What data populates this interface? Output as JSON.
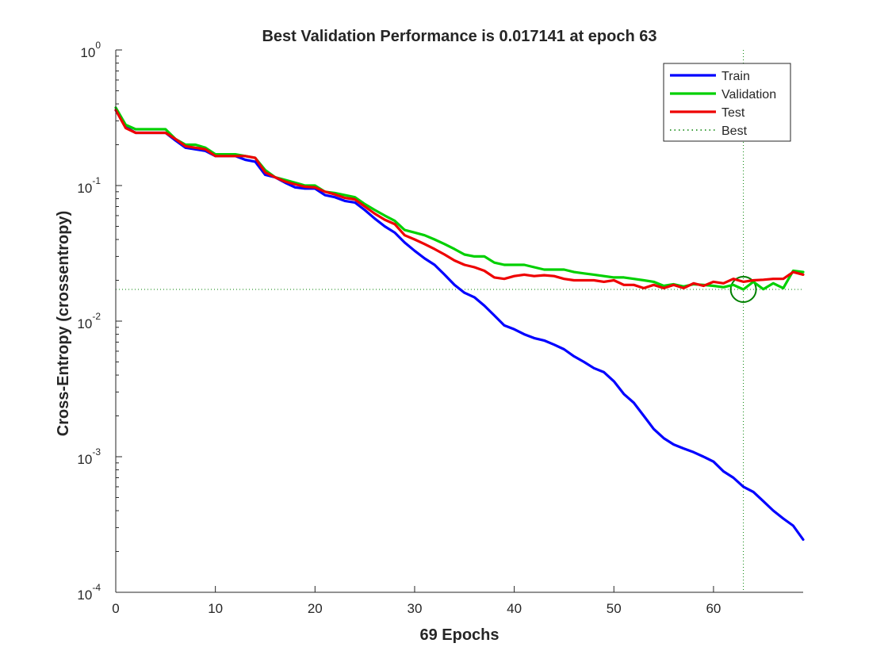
{
  "chart_data": {
    "type": "line",
    "title": "Best Validation Performance is 0.017141 at epoch 63",
    "xlabel": "69 Epochs",
    "ylabel": "Cross-Entropy  (crossentropy)",
    "xlim": [
      0,
      69
    ],
    "ylim": [
      0.0001,
      1
    ],
    "yscale": "log",
    "x_ticks": [
      "0",
      "10",
      "20",
      "30",
      "40",
      "50",
      "60"
    ],
    "y_ticks": [
      {
        "base": "10",
        "exp": "0"
      },
      {
        "base": "10",
        "exp": "-1"
      },
      {
        "base": "10",
        "exp": "-2"
      },
      {
        "base": "10",
        "exp": "-3"
      },
      {
        "base": "10",
        "exp": "-4"
      }
    ],
    "legend_position": "top-right",
    "best": {
      "epoch": 63,
      "value": 0.017141,
      "color": "#008000"
    },
    "series": [
      {
        "name": "Train",
        "color": "#0000ff",
        "points": [
          [
            0,
            0.36
          ],
          [
            1,
            0.27
          ],
          [
            2,
            0.245
          ],
          [
            3,
            0.245
          ],
          [
            4,
            0.245
          ],
          [
            5,
            0.245
          ],
          [
            6,
            0.215
          ],
          [
            7,
            0.19
          ],
          [
            8,
            0.185
          ],
          [
            9,
            0.18
          ],
          [
            10,
            0.165
          ],
          [
            11,
            0.165
          ],
          [
            12,
            0.165
          ],
          [
            13,
            0.155
          ],
          [
            14,
            0.15
          ],
          [
            15,
            0.12
          ],
          [
            16,
            0.115
          ],
          [
            17,
            0.105
          ],
          [
            18,
            0.097
          ],
          [
            19,
            0.095
          ],
          [
            20,
            0.095
          ],
          [
            21,
            0.085
          ],
          [
            22,
            0.082
          ],
          [
            23,
            0.077
          ],
          [
            24,
            0.075
          ],
          [
            25,
            0.066
          ],
          [
            26,
            0.057
          ],
          [
            27,
            0.05
          ],
          [
            28,
            0.045
          ],
          [
            29,
            0.038
          ],
          [
            30,
            0.033
          ],
          [
            31,
            0.029
          ],
          [
            32,
            0.026
          ],
          [
            33,
            0.022
          ],
          [
            34,
            0.0185
          ],
          [
            35,
            0.0162
          ],
          [
            36,
            0.015
          ],
          [
            37,
            0.013
          ],
          [
            38,
            0.011
          ],
          [
            39,
            0.0093
          ],
          [
            40,
            0.0087
          ],
          [
            41,
            0.008
          ],
          [
            42,
            0.0075
          ],
          [
            43,
            0.0072
          ],
          [
            44,
            0.0067
          ],
          [
            45,
            0.0062
          ],
          [
            46,
            0.0055
          ],
          [
            47,
            0.005
          ],
          [
            48,
            0.0045
          ],
          [
            49,
            0.0042
          ],
          [
            50,
            0.0036
          ],
          [
            51,
            0.0029
          ],
          [
            52,
            0.0025
          ],
          [
            53,
            0.002
          ],
          [
            54,
            0.0016
          ],
          [
            55,
            0.00137
          ],
          [
            56,
            0.00123
          ],
          [
            57,
            0.00115
          ],
          [
            58,
            0.00108
          ],
          [
            59,
            0.001
          ],
          [
            60,
            0.00092
          ],
          [
            61,
            0.00078
          ],
          [
            62,
            0.0007
          ],
          [
            63,
            0.0006
          ],
          [
            64,
            0.00055
          ],
          [
            65,
            0.00047
          ],
          [
            66,
            0.0004
          ],
          [
            67,
            0.00035
          ],
          [
            68,
            0.00031
          ],
          [
            69,
            0.000245
          ]
        ]
      },
      {
        "name": "Validation",
        "color": "#00d000",
        "points": [
          [
            0,
            0.375
          ],
          [
            1,
            0.28
          ],
          [
            2,
            0.26
          ],
          [
            3,
            0.26
          ],
          [
            4,
            0.26
          ],
          [
            5,
            0.26
          ],
          [
            6,
            0.22
          ],
          [
            7,
            0.2
          ],
          [
            8,
            0.2
          ],
          [
            9,
            0.19
          ],
          [
            10,
            0.17
          ],
          [
            11,
            0.17
          ],
          [
            12,
            0.17
          ],
          [
            13,
            0.165
          ],
          [
            14,
            0.16
          ],
          [
            15,
            0.13
          ],
          [
            16,
            0.115
          ],
          [
            17,
            0.11
          ],
          [
            18,
            0.105
          ],
          [
            19,
            0.1
          ],
          [
            20,
            0.1
          ],
          [
            21,
            0.09
          ],
          [
            22,
            0.088
          ],
          [
            23,
            0.085
          ],
          [
            24,
            0.082
          ],
          [
            25,
            0.073
          ],
          [
            26,
            0.066
          ],
          [
            27,
            0.06
          ],
          [
            28,
            0.055
          ],
          [
            29,
            0.047
          ],
          [
            30,
            0.045
          ],
          [
            31,
            0.043
          ],
          [
            32,
            0.04
          ],
          [
            33,
            0.037
          ],
          [
            34,
            0.034
          ],
          [
            35,
            0.031
          ],
          [
            36,
            0.03
          ],
          [
            37,
            0.03
          ],
          [
            38,
            0.027
          ],
          [
            39,
            0.026
          ],
          [
            40,
            0.026
          ],
          [
            41,
            0.026
          ],
          [
            42,
            0.025
          ],
          [
            43,
            0.024
          ],
          [
            44,
            0.024
          ],
          [
            45,
            0.024
          ],
          [
            46,
            0.023
          ],
          [
            47,
            0.0225
          ],
          [
            48,
            0.022
          ],
          [
            49,
            0.0215
          ],
          [
            50,
            0.021
          ],
          [
            51,
            0.021
          ],
          [
            52,
            0.0205
          ],
          [
            53,
            0.02
          ],
          [
            54,
            0.0195
          ],
          [
            55,
            0.0182
          ],
          [
            56,
            0.0187
          ],
          [
            57,
            0.018
          ],
          [
            58,
            0.0187
          ],
          [
            59,
            0.0185
          ],
          [
            60,
            0.0182
          ],
          [
            61,
            0.0178
          ],
          [
            62,
            0.0185
          ],
          [
            63,
            0.017141
          ],
          [
            64,
            0.0195
          ],
          [
            65,
            0.0172
          ],
          [
            66,
            0.019
          ],
          [
            67,
            0.0175
          ],
          [
            68,
            0.0235
          ],
          [
            69,
            0.023
          ]
        ]
      },
      {
        "name": "Test",
        "color": "#ee0000",
        "points": [
          [
            0,
            0.36
          ],
          [
            1,
            0.265
          ],
          [
            2,
            0.245
          ],
          [
            3,
            0.245
          ],
          [
            4,
            0.245
          ],
          [
            5,
            0.245
          ],
          [
            6,
            0.22
          ],
          [
            7,
            0.195
          ],
          [
            8,
            0.19
          ],
          [
            9,
            0.185
          ],
          [
            10,
            0.165
          ],
          [
            11,
            0.165
          ],
          [
            12,
            0.165
          ],
          [
            13,
            0.165
          ],
          [
            14,
            0.16
          ],
          [
            15,
            0.125
          ],
          [
            16,
            0.115
          ],
          [
            17,
            0.107
          ],
          [
            18,
            0.102
          ],
          [
            19,
            0.098
          ],
          [
            20,
            0.097
          ],
          [
            21,
            0.09
          ],
          [
            22,
            0.086
          ],
          [
            23,
            0.081
          ],
          [
            24,
            0.079
          ],
          [
            25,
            0.07
          ],
          [
            26,
            0.062
          ],
          [
            27,
            0.056
          ],
          [
            28,
            0.052
          ],
          [
            29,
            0.043
          ],
          [
            30,
            0.04
          ],
          [
            31,
            0.037
          ],
          [
            32,
            0.034
          ],
          [
            33,
            0.031
          ],
          [
            34,
            0.028
          ],
          [
            35,
            0.026
          ],
          [
            36,
            0.025
          ],
          [
            37,
            0.0235
          ],
          [
            38,
            0.021
          ],
          [
            39,
            0.0205
          ],
          [
            40,
            0.0215
          ],
          [
            41,
            0.022
          ],
          [
            42,
            0.0215
          ],
          [
            43,
            0.0218
          ],
          [
            44,
            0.0215
          ],
          [
            45,
            0.0205
          ],
          [
            46,
            0.02
          ],
          [
            47,
            0.02
          ],
          [
            48,
            0.02
          ],
          [
            49,
            0.0195
          ],
          [
            50,
            0.02
          ],
          [
            51,
            0.0185
          ],
          [
            52,
            0.0185
          ],
          [
            53,
            0.0175
          ],
          [
            54,
            0.0185
          ],
          [
            55,
            0.0175
          ],
          [
            56,
            0.0185
          ],
          [
            57,
            0.0175
          ],
          [
            58,
            0.019
          ],
          [
            59,
            0.0182
          ],
          [
            60,
            0.0195
          ],
          [
            61,
            0.019
          ],
          [
            62,
            0.0205
          ],
          [
            63,
            0.0195
          ],
          [
            64,
            0.02
          ],
          [
            65,
            0.0202
          ],
          [
            66,
            0.0205
          ],
          [
            67,
            0.0205
          ],
          [
            68,
            0.023
          ],
          [
            69,
            0.022
          ]
        ]
      }
    ],
    "legend": [
      {
        "label": "Train",
        "color": "#0000ff",
        "style": "solid"
      },
      {
        "label": "Validation",
        "color": "#00d000",
        "style": "solid"
      },
      {
        "label": "Test",
        "color": "#ee0000",
        "style": "solid"
      },
      {
        "label": "Best",
        "color": "#008000",
        "style": "dotted"
      }
    ]
  }
}
